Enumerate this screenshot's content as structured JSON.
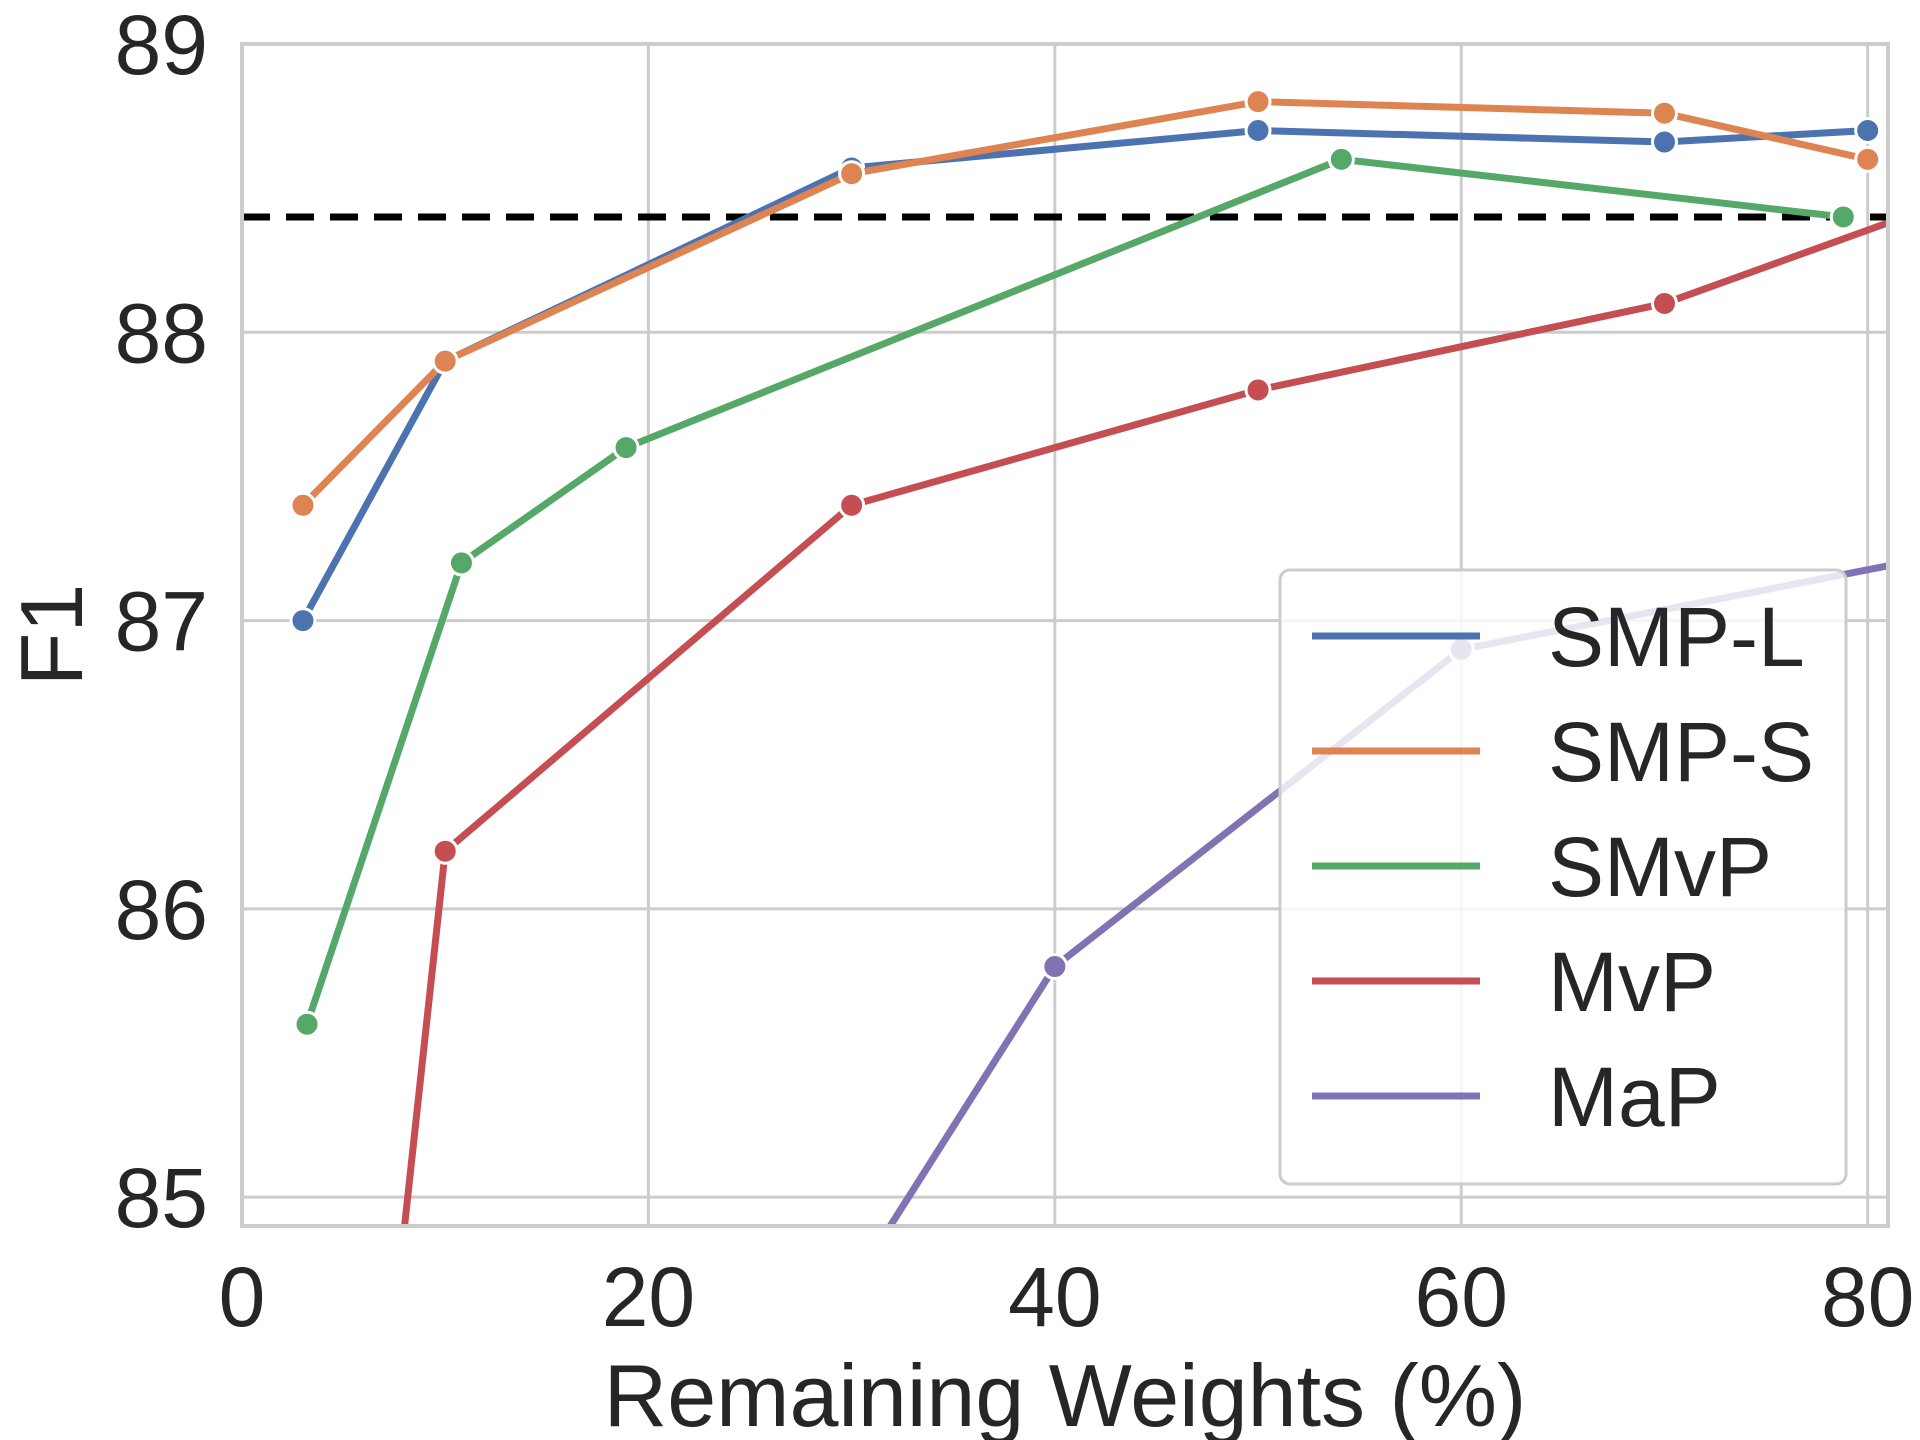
{
  "chart_data": {
    "type": "line",
    "title": "",
    "xlabel": "Remaining Weights (%)",
    "ylabel": "F1",
    "xlim": [
      0,
      81
    ],
    "ylim": [
      84.9,
      89
    ],
    "xticks": [
      0,
      20,
      40,
      60,
      80
    ],
    "yticks": [
      85,
      86,
      87,
      88,
      89
    ],
    "grid": true,
    "legend_position": "lower-right",
    "reference_line": {
      "y": 88.4,
      "style": "dashed",
      "color": "#000000"
    },
    "series": [
      {
        "name": "SMP-L",
        "color": "#4c72b0",
        "points": [
          [
            3,
            87.0
          ],
          [
            10,
            87.9
          ],
          [
            30,
            88.57
          ],
          [
            50,
            88.7
          ],
          [
            70,
            88.66
          ],
          [
            80,
            88.7
          ]
        ]
      },
      {
        "name": "SMP-S",
        "color": "#dd8452",
        "points": [
          [
            3,
            87.4
          ],
          [
            10,
            87.9
          ],
          [
            30,
            88.55
          ],
          [
            50,
            88.8
          ],
          [
            70,
            88.76
          ],
          [
            80,
            88.6
          ]
        ]
      },
      {
        "name": "SMvP",
        "color": "#55a868",
        "points": [
          [
            3.2,
            85.6
          ],
          [
            10.8,
            87.2
          ],
          [
            18.9,
            87.6
          ],
          [
            54.1,
            88.6
          ],
          [
            78.8,
            88.4
          ]
        ]
      },
      {
        "name": "MvP",
        "color": "#c44e52",
        "points": [
          [
            8,
            84.9
          ],
          [
            10,
            86.2
          ],
          [
            30,
            87.4
          ],
          [
            50,
            87.8
          ],
          [
            70,
            88.1
          ],
          [
            81,
            88.38
          ]
        ],
        "marker_indices": [
          1,
          2,
          3,
          4
        ]
      },
      {
        "name": "MaP",
        "color": "#8172b3",
        "points": [
          [
            31.9,
            84.9
          ],
          [
            40,
            85.8
          ],
          [
            60,
            86.9
          ],
          [
            81,
            87.19
          ]
        ],
        "marker_indices": [
          1,
          2
        ]
      }
    ]
  }
}
